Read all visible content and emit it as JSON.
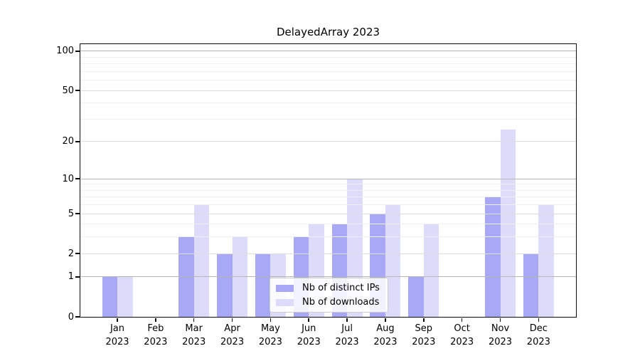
{
  "title": "DelayedArray 2023",
  "chart_data": {
    "type": "bar",
    "title": "DelayedArray 2023",
    "categories": [
      "Jan",
      "Feb",
      "Mar",
      "Apr",
      "May",
      "Jun",
      "Jul",
      "Aug",
      "Sep",
      "Oct",
      "Nov",
      "Dec"
    ],
    "year": "2023",
    "series": [
      {
        "name": "Nb of distinct IPs",
        "color": "#a8a8f7",
        "values": [
          1,
          0,
          3,
          2,
          2,
          3,
          4,
          5,
          1,
          0,
          7,
          2
        ]
      },
      {
        "name": "Nb of downloads",
        "color": "#dcdcfa",
        "values": [
          1,
          0,
          6,
          3,
          2,
          4,
          10,
          6,
          4,
          0,
          25,
          6
        ]
      }
    ],
    "xlabel": "",
    "ylabel": "",
    "y_ticks": [
      0,
      1,
      2,
      5,
      10,
      20,
      50,
      100
    ],
    "scale": "log10(value+1)",
    "ylim": [
      0,
      114
    ],
    "grid": {
      "emphasis_ticks": [
        1,
        10,
        100
      ],
      "major_ticks": [
        2,
        5,
        20,
        50
      ],
      "minor_ticks": [
        3,
        4,
        6,
        7,
        8,
        9,
        30,
        40,
        60,
        70,
        80,
        90
      ]
    },
    "legend": {
      "position": "lower center"
    }
  }
}
